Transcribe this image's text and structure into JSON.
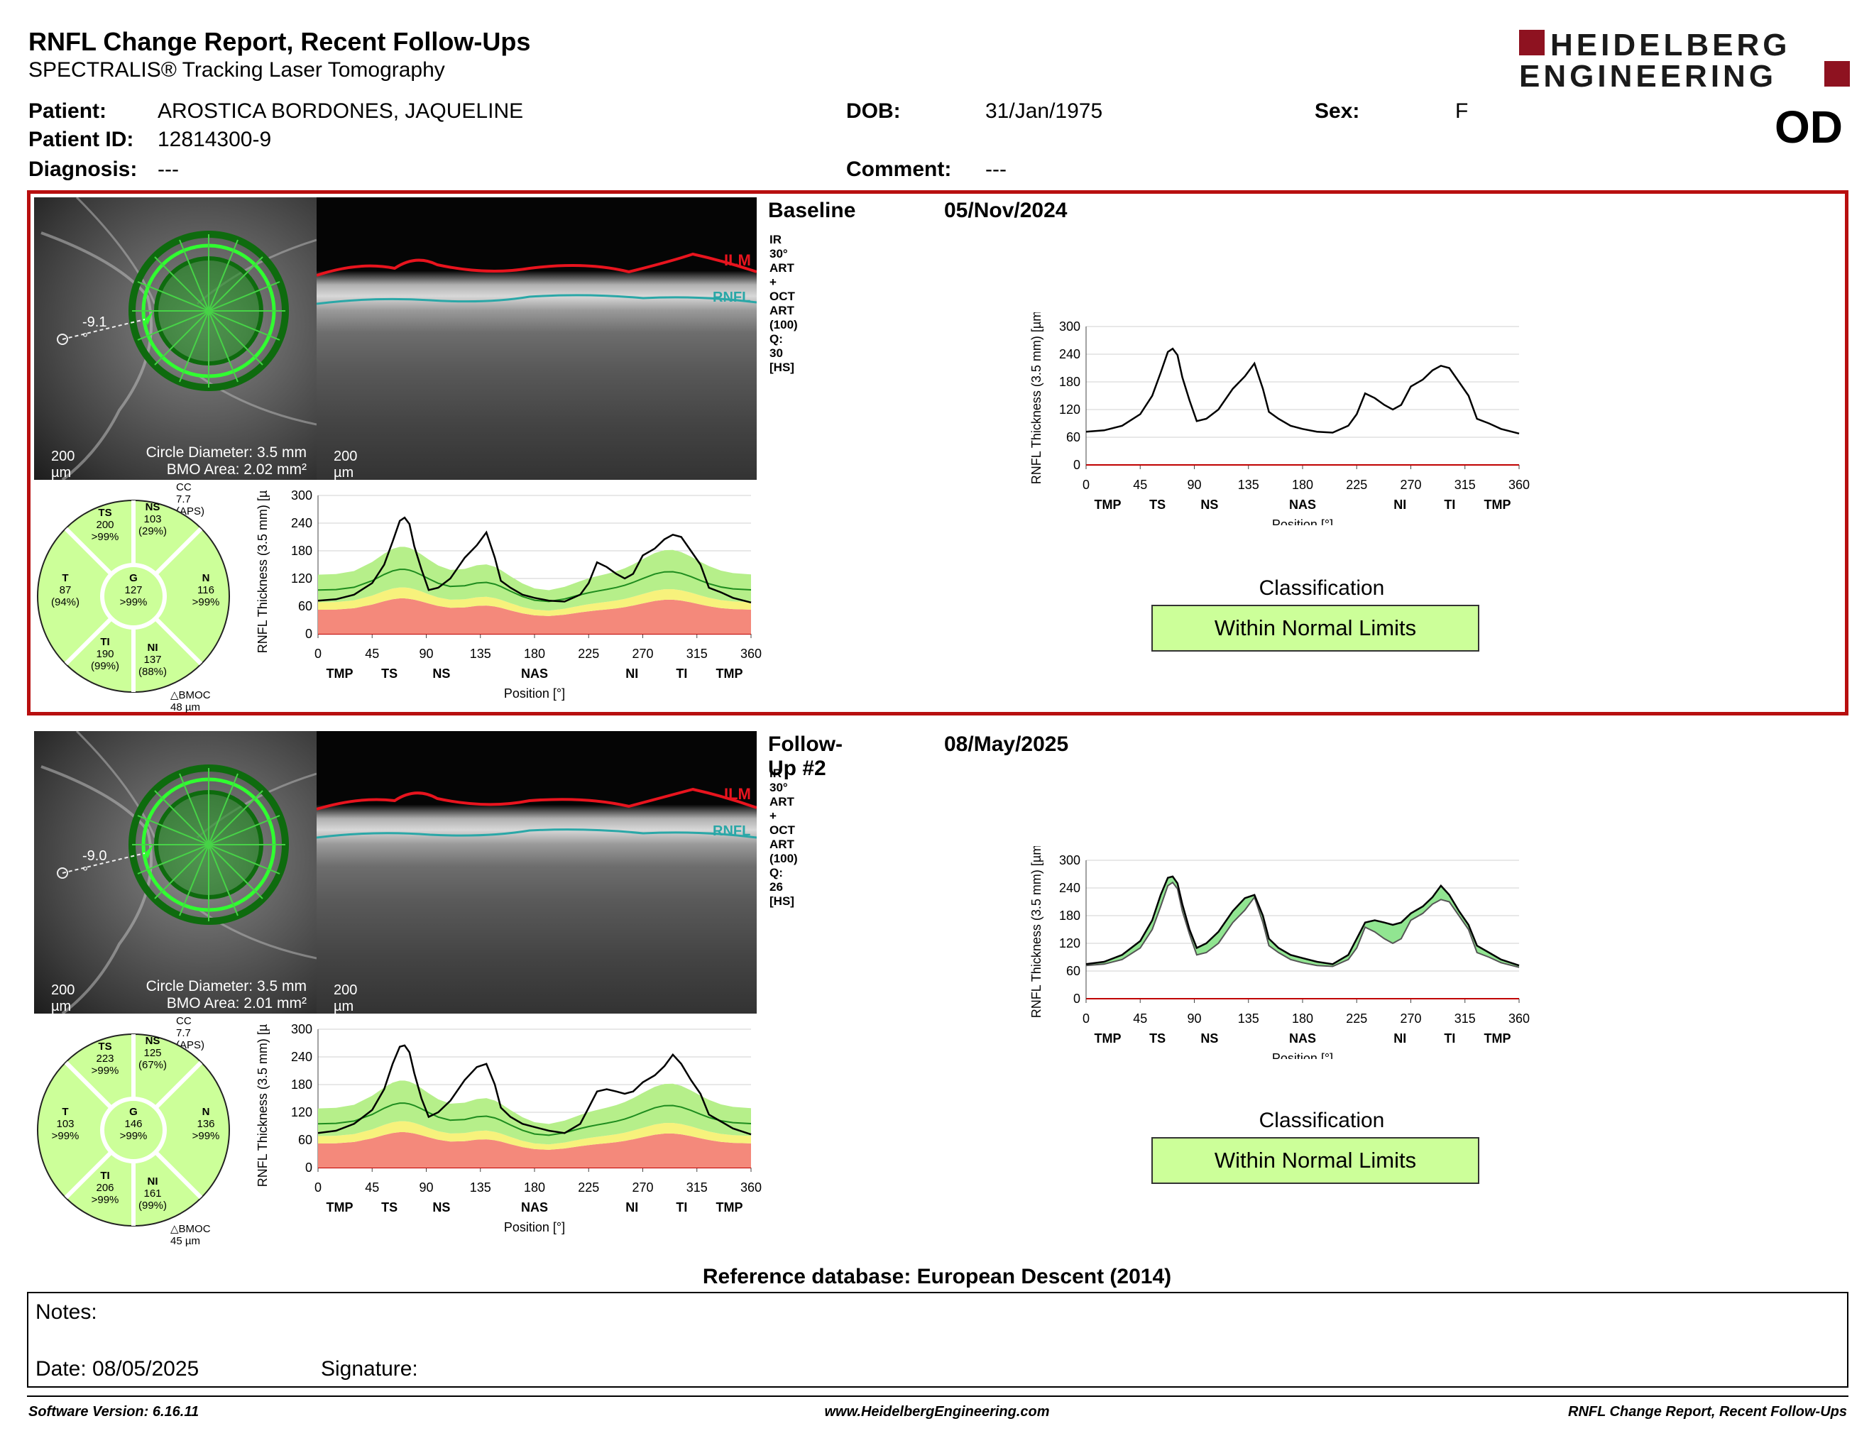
{
  "header": {
    "title": "RNFL Change Report, Recent Follow-Ups",
    "subtitle": "SPECTRALIS® Tracking Laser Tomography",
    "logo_line1": "HEIDELBERG",
    "logo_line2": "ENGINEERING",
    "eye": "OD"
  },
  "patient": {
    "patient_label": "Patient:",
    "patient_value": "AROSTICA BORDONES, JAQUELINE",
    "id_label": "Patient ID:",
    "id_value": "12814300-9",
    "diagnosis_label": "Diagnosis:",
    "diagnosis_value": "---",
    "dob_label": "DOB:",
    "dob_value": "31/Jan/1975",
    "comment_label": "Comment:",
    "comment_value": "---",
    "sex_label": "Sex:",
    "sex_value": "F"
  },
  "colors": {
    "highlight_border": "#b80f0f",
    "normal_green": "#ccff99",
    "red_band": "#f4897b",
    "yellow_band": "#f7f27c",
    "green_band": "#b6ef8a",
    "ilm": "#e8141e",
    "rnfl": "#2aa7a7"
  },
  "scans": [
    {
      "title": "Baseline",
      "date": "05/Nov/2024",
      "acq": "IR 30° ART + OCT ART (100) Q: 30 [HS]",
      "angle": "-9.1 °",
      "scale_fundus": "200 µm",
      "scale_oct": "200 µm",
      "circle_diameter": "Circle Diameter: 3.5 mm",
      "bmo_area": "BMO Area: 2.02 mm²",
      "cc": "CC 7.7 (APS)",
      "bmoc": "BMOC 48 µm",
      "ilm_label": "ILM",
      "rnfl_label": "RNFL",
      "sectors": {
        "TS": {
          "name": "TS",
          "value": "200",
          "pct": ">99%"
        },
        "NS": {
          "name": "NS",
          "value": "103",
          "pct": "(29%)"
        },
        "T": {
          "name": "T",
          "value": "87",
          "pct": "(94%)"
        },
        "G": {
          "name": "G",
          "value": "127",
          "pct": ">99%"
        },
        "N": {
          "name": "N",
          "value": "116",
          "pct": ">99%"
        },
        "TI": {
          "name": "TI",
          "value": "190",
          "pct": "(99%)"
        },
        "NI": {
          "name": "NI",
          "value": "137",
          "pct": "(88%)"
        }
      },
      "classification_title": "Classification",
      "classification": "Within Normal Limits"
    },
    {
      "title": "Follow-Up #2",
      "date": "08/May/2025",
      "acq": "IR 30° ART + OCT ART (100) Q: 26 [HS]",
      "angle": "-9.0 °",
      "scale_fundus": "200 µm",
      "scale_oct": "200 µm",
      "circle_diameter": "Circle Diameter: 3.5 mm",
      "bmo_area": "BMO Area: 2.01 mm²",
      "cc": "CC 7.7 (APS)",
      "bmoc": "BMOC 45 µm",
      "ilm_label": "ILM",
      "rnfl_label": "RNFL",
      "sectors": {
        "TS": {
          "name": "TS",
          "value": "223",
          "pct": ">99%"
        },
        "NS": {
          "name": "NS",
          "value": "125",
          "pct": "(67%)"
        },
        "T": {
          "name": "T",
          "value": "103",
          "pct": ">99%"
        },
        "G": {
          "name": "G",
          "value": "146",
          "pct": ">99%"
        },
        "N": {
          "name": "N",
          "value": "136",
          "pct": ">99%"
        },
        "TI": {
          "name": "TI",
          "value": "206",
          "pct": ">99%"
        },
        "NI": {
          "name": "NI",
          "value": "161",
          "pct": "(99%)"
        }
      },
      "classification_title": "Classification",
      "classification": "Within Normal Limits"
    }
  ],
  "chart_data": [
    {
      "type": "line",
      "ylabel": "RNFL Thickness (3.5 mm) [µm]",
      "xlabel": "Position [°]",
      "xlim": [
        0,
        360
      ],
      "ylim": [
        0,
        300
      ],
      "xticks": [
        "0",
        "45",
        "90",
        "135",
        "180",
        "225",
        "270",
        "315",
        "360"
      ],
      "yticks": [
        "0",
        "60",
        "120",
        "180",
        "240",
        "300"
      ],
      "sector_labels": [
        "TMP",
        "TS",
        "NS",
        "NAS",
        "NI",
        "TI",
        "TMP"
      ],
      "x": [
        0,
        15,
        30,
        45,
        55,
        62,
        68,
        72,
        76,
        80,
        86,
        92,
        100,
        110,
        122,
        132,
        140,
        147,
        152,
        160,
        170,
        180,
        192,
        205,
        218,
        225,
        232,
        240,
        248,
        255,
        262,
        270,
        280,
        288,
        295,
        302,
        310,
        318,
        325,
        335,
        345,
        360
      ],
      "series": [
        {
          "values": [
            72,
            75,
            85,
            110,
            150,
            200,
            245,
            252,
            238,
            190,
            140,
            95,
            100,
            120,
            165,
            192,
            220,
            165,
            115,
            100,
            85,
            78,
            72,
            70,
            85,
            110,
            155,
            145,
            130,
            120,
            130,
            170,
            185,
            205,
            215,
            210,
            180,
            150,
            100,
            90,
            78,
            68
          ]
        }
      ]
    },
    {
      "type": "line",
      "ylabel": "RNFL Thickness (3.5 mm) [µm]",
      "xlabel": "Position [°]",
      "xlim": [
        0,
        360
      ],
      "ylim": [
        0,
        300
      ],
      "xticks": [
        "0",
        "45",
        "90",
        "135",
        "180",
        "225",
        "270",
        "315",
        "360"
      ],
      "yticks": [
        "0",
        "60",
        "120",
        "180",
        "240",
        "300"
      ],
      "sector_labels": [
        "TMP",
        "TS",
        "NS",
        "NAS",
        "NI",
        "TI",
        "TMP"
      ],
      "x": [
        0,
        15,
        30,
        45,
        55,
        62,
        68,
        72,
        76,
        80,
        86,
        92,
        100,
        110,
        122,
        132,
        140,
        147,
        152,
        160,
        170,
        180,
        192,
        205,
        218,
        225,
        232,
        240,
        248,
        255,
        262,
        270,
        280,
        288,
        295,
        302,
        310,
        318,
        325,
        335,
        345,
        360
      ],
      "series": [
        {
          "values": [
            75,
            80,
            95,
            125,
            170,
            225,
            262,
            265,
            250,
            205,
            150,
            110,
            120,
            145,
            190,
            218,
            225,
            180,
            130,
            110,
            95,
            88,
            80,
            75,
            95,
            130,
            165,
            170,
            165,
            160,
            165,
            185,
            200,
            220,
            245,
            225,
            190,
            160,
            115,
            100,
            85,
            72
          ]
        }
      ]
    }
  ]
}
